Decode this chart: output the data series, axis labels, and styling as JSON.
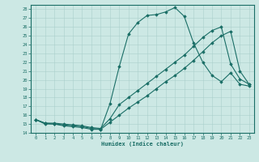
{
  "xlabel": "Humidex (Indice chaleur)",
  "bg_color": "#cce8e4",
  "line_color": "#1a6e66",
  "grid_color": "#aacfcb",
  "xlim": [
    -0.5,
    23.5
  ],
  "ylim": [
    14,
    28.5
  ],
  "xticks": [
    0,
    1,
    2,
    3,
    4,
    5,
    6,
    7,
    8,
    9,
    10,
    11,
    12,
    13,
    14,
    15,
    16,
    17,
    18,
    19,
    20,
    21,
    22,
    23
  ],
  "yticks": [
    14,
    15,
    16,
    17,
    18,
    19,
    20,
    21,
    22,
    23,
    24,
    25,
    26,
    27,
    28
  ],
  "line1_x": [
    0,
    1,
    2,
    3,
    4,
    5,
    6,
    7,
    8,
    9,
    10,
    11,
    12,
    13,
    14,
    15,
    16,
    17,
    18,
    19,
    20,
    21,
    22,
    23
  ],
  "line1_y": [
    15.5,
    15.0,
    15.0,
    14.8,
    14.7,
    14.6,
    14.4,
    14.4,
    17.3,
    21.5,
    25.2,
    26.5,
    27.3,
    27.4,
    27.7,
    28.2,
    27.2,
    24.2,
    22.0,
    20.5,
    19.8,
    20.8,
    19.5,
    19.3
  ],
  "line2_x": [
    0,
    1,
    2,
    3,
    4,
    5,
    6,
    7,
    8,
    9,
    10,
    11,
    12,
    13,
    14,
    15,
    16,
    17,
    18,
    19,
    20,
    21,
    22,
    23
  ],
  "line2_y": [
    15.5,
    15.1,
    15.1,
    15.0,
    14.9,
    14.8,
    14.6,
    14.5,
    15.6,
    17.2,
    18.0,
    18.8,
    19.6,
    20.4,
    21.2,
    22.0,
    22.8,
    23.8,
    24.8,
    25.6,
    26.0,
    21.8,
    20.1,
    19.5
  ],
  "line3_x": [
    0,
    1,
    2,
    3,
    4,
    5,
    6,
    7,
    8,
    9,
    10,
    11,
    12,
    13,
    14,
    15,
    16,
    17,
    18,
    19,
    20,
    21,
    22,
    23
  ],
  "line3_y": [
    15.5,
    15.1,
    15.0,
    14.9,
    14.8,
    14.7,
    14.5,
    14.4,
    15.2,
    16.0,
    16.8,
    17.5,
    18.2,
    19.0,
    19.8,
    20.5,
    21.3,
    22.2,
    23.2,
    24.2,
    25.0,
    25.5,
    21.0,
    19.5
  ]
}
